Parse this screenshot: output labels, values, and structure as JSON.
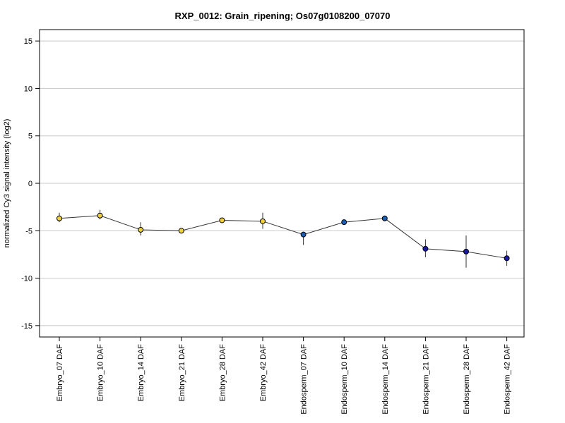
{
  "chart_data": {
    "type": "line",
    "title": "RXP_0012: Grain_ripening; Os07g0108200_07070",
    "xlabel": "",
    "ylabel": "normalized Cy3 signal intensity (log2)",
    "ylim": [
      -16.2,
      16.2
    ],
    "yticks": [
      15,
      10,
      5,
      0,
      -5,
      -10,
      -15
    ],
    "ytick_labels": [
      "15",
      "10",
      "5",
      "0",
      "-5",
      "-10",
      "-15"
    ],
    "grid": true,
    "legend": "none",
    "categories": [
      "Embryo_07 DAF",
      "Embryo_10 DAF",
      "Embryo_14 DAF",
      "Embryo_21 DAF",
      "Embryo_28 DAF",
      "Embryo_42 DAF",
      "Endosperm_07 DAF",
      "Endosperm_10 DAF",
      "Endosperm_14 DAF",
      "Endosperm_21 DAF",
      "Endosperm_28 DAF",
      "Endosperm_42 DAF"
    ],
    "series": [
      {
        "values": [
          -3.7,
          -3.4,
          -4.9,
          -5.0,
          -3.9,
          -4.0,
          -5.4,
          -4.1,
          -3.7,
          -6.9,
          -7.2,
          -7.9
        ],
        "error_low": [
          0.4,
          0.4,
          0.6,
          0.2,
          0.2,
          0.8,
          1.1,
          0.2,
          0.3,
          0.9,
          1.7,
          0.8
        ],
        "error_high": [
          0.6,
          0.6,
          0.8,
          0.2,
          0.2,
          0.9,
          0.2,
          0.2,
          0.2,
          1.0,
          1.7,
          0.8
        ],
        "point_colors": [
          "#f1d13a",
          "#f1d13a",
          "#f1d13a",
          "#f1d13a",
          "#f1d13a",
          "#f1d13a",
          "#1a5fb4",
          "#1a5fb4",
          "#1a5fb4",
          "#1a1aa8",
          "#1a1aa8",
          "#1a1aa8"
        ]
      }
    ],
    "colors": {
      "line": "#333333",
      "grid": "#c8c8c8",
      "frame": "#000000"
    }
  }
}
